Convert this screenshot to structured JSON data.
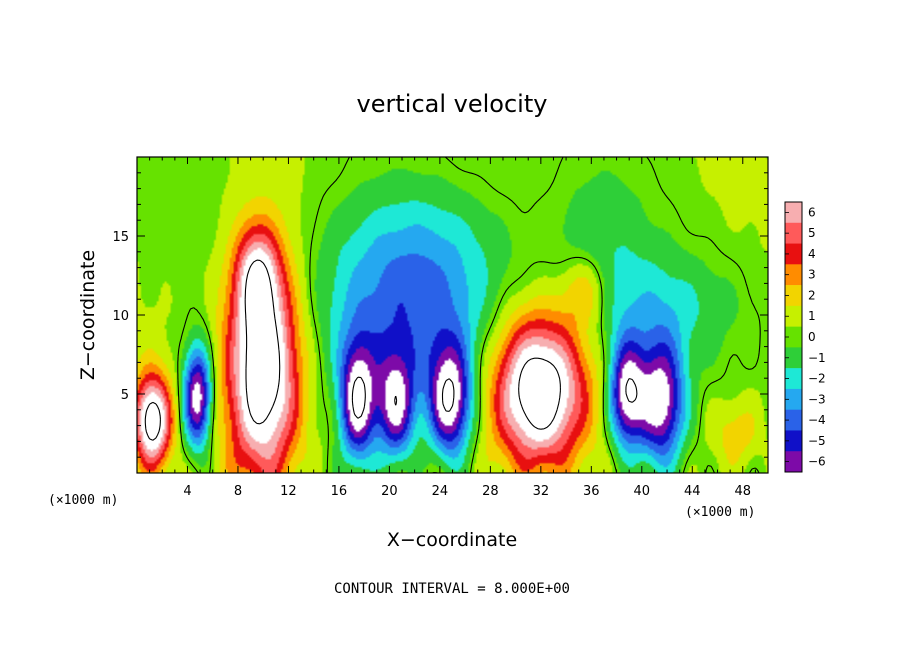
{
  "chart_data": {
    "type": "heatmap",
    "title": "vertical velocity",
    "xlabel": "X−coordinate",
    "ylabel": "Z−coordinate",
    "x_unit_label": "(×1000 m)",
    "x_unit_label_right": "(×1000 m)",
    "xlim": [
      0,
      50
    ],
    "ylim": [
      0,
      20
    ],
    "x_ticks": [
      4,
      8,
      12,
      16,
      20,
      24,
      28,
      32,
      36,
      40,
      44,
      48
    ],
    "x_tick_labels": [
      "4",
      "8",
      "12",
      "16",
      "20",
      "24",
      "28",
      "32",
      "36",
      "40",
      "44",
      "48"
    ],
    "y_ticks": [
      5,
      10,
      15
    ],
    "y_tick_labels": [
      "5",
      "10",
      "15"
    ],
    "colorbar": {
      "levels": [
        6,
        5,
        4,
        3,
        2,
        1,
        0,
        -1,
        -2,
        -3,
        -4,
        -5,
        -6
      ],
      "labels": [
        "6",
        "5",
        "4",
        "3",
        "2",
        "1",
        "0",
        "−1",
        "−2",
        "−3",
        "−4",
        "−5",
        "−6"
      ],
      "colors": [
        "#f7aeb0",
        "#ff5a5a",
        "#e81010",
        "#ff8c00",
        "#f2d400",
        "#c6f000",
        "#66e200",
        "#2ecf38",
        "#1ee8d6",
        "#25a8f0",
        "#2a62e8",
        "#1010c8",
        "#7d0aa8"
      ]
    },
    "features": [
      {
        "kind": "updraft",
        "x": 1.2,
        "z": 3.3,
        "sx": 1.0,
        "sz": 2.0,
        "w": 9
      },
      {
        "kind": "downdraft",
        "x": 4.8,
        "z": 4.8,
        "sx": 0.8,
        "sz": 2.3,
        "w": -8
      },
      {
        "kind": "updraft",
        "x": 10.0,
        "z": 6.5,
        "sx": 2.0,
        "sz": 4.8,
        "w": 10
      },
      {
        "kind": "updraft",
        "x": 9.5,
        "z": 12.5,
        "sx": 1.2,
        "sz": 2.2,
        "w": 5
      },
      {
        "kind": "downdraft",
        "x": 17.5,
        "z": 4.5,
        "sx": 1.0,
        "sz": 2.6,
        "w": -8
      },
      {
        "kind": "downdraft",
        "x": 20.5,
        "z": 4.2,
        "sx": 1.1,
        "sz": 2.4,
        "w": -7
      },
      {
        "kind": "downdraft",
        "x": 24.8,
        "z": 4.5,
        "sx": 1.2,
        "sz": 2.5,
        "w": -8
      },
      {
        "kind": "downdraft",
        "x": 21.0,
        "z": 9.5,
        "sx": 4.8,
        "sz": 3.4,
        "w": -4
      },
      {
        "kind": "updraft",
        "x": 31.8,
        "z": 5.2,
        "sx": 2.5,
        "sz": 3.3,
        "w": 10
      },
      {
        "kind": "updraft",
        "x": 35.5,
        "z": 11.5,
        "sx": 1.3,
        "sz": 1.6,
        "w": 3
      },
      {
        "kind": "downdraft",
        "x": 38.8,
        "z": 5.0,
        "sx": 1.0,
        "sz": 2.4,
        "w": -8
      },
      {
        "kind": "downdraft",
        "x": 41.5,
        "z": 4.5,
        "sx": 1.3,
        "sz": 2.8,
        "w": -8
      },
      {
        "kind": "downdraft",
        "x": 41.0,
        "z": 10.5,
        "sx": 5.0,
        "sz": 2.5,
        "w": -2
      },
      {
        "kind": "updraft",
        "x": 47.5,
        "z": 2.5,
        "sx": 1.3,
        "sz": 1.5,
        "w": 2
      },
      {
        "kind": "downdraft",
        "x": 36.5,
        "z": 14.5,
        "sx": 3.0,
        "sz": 3.5,
        "w": -1.5
      },
      {
        "kind": "downdraft",
        "x": 22.0,
        "z": 14.5,
        "sx": 5.5,
        "sz": 3.0,
        "w": -2
      }
    ]
  },
  "footer": {
    "contour_interval": "CONTOUR INTERVAL =  8.000E+00"
  }
}
